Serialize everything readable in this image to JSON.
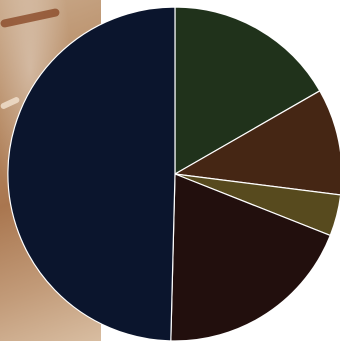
{
  "chart_data": {
    "type": "pie",
    "start_angle_deg": 0,
    "direction": "clockwise",
    "slice_border": "#ffffff",
    "series": [
      {
        "value": 16.7,
        "color": "#20321b"
      },
      {
        "value": 10.3,
        "color": "#452614"
      },
      {
        "value": 4.0,
        "color": "#574a1e"
      },
      {
        "value": 19.4,
        "color": "#220f0d"
      },
      {
        "value": 49.6,
        "color": "#0b152d"
      }
    ]
  },
  "background": {
    "left_image": "photo-background"
  }
}
